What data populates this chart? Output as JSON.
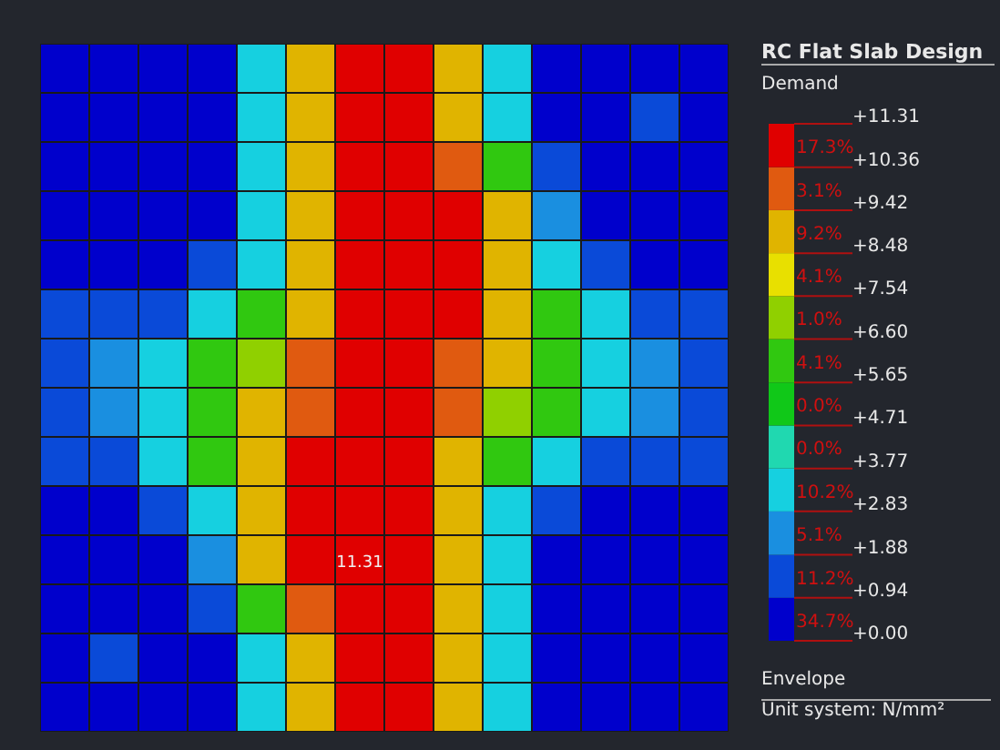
{
  "chart_data": {
    "type": "heatmap",
    "title": "RC Flat Slab Design",
    "clabel": "Demand",
    "categories": [
      null,
      null,
      null,
      null,
      null,
      null,
      null,
      null,
      null,
      null,
      null,
      null,
      null,
      null
    ],
    "y_categories": [
      null,
      null,
      null,
      null,
      null,
      null,
      null,
      null,
      null,
      null,
      null,
      null,
      null,
      null
    ],
    "cells": [
      [
        0.47,
        0.47,
        0.47,
        0.47,
        3.3,
        8.9,
        10.8,
        10.8,
        8.9,
        3.3,
        0.47,
        0.47,
        0.47,
        0.47
      ],
      [
        0.47,
        0.47,
        0.47,
        0.47,
        3.3,
        8.9,
        10.8,
        10.8,
        8.9,
        3.3,
        0.47,
        0.47,
        1.41,
        0.47
      ],
      [
        0.47,
        0.47,
        0.47,
        0.47,
        3.3,
        8.9,
        10.8,
        10.8,
        9.9,
        6.1,
        1.41,
        0.47,
        0.47,
        0.47
      ],
      [
        0.47,
        0.47,
        0.47,
        0.47,
        3.3,
        8.9,
        10.8,
        10.8,
        10.8,
        8.9,
        2.35,
        0.47,
        0.47,
        0.47
      ],
      [
        0.47,
        0.47,
        0.47,
        1.41,
        3.3,
        8.9,
        10.8,
        10.8,
        10.8,
        8.9,
        3.3,
        1.41,
        0.47,
        0.47
      ],
      [
        1.41,
        1.41,
        1.41,
        3.3,
        6.1,
        8.9,
        10.8,
        10.8,
        10.8,
        8.9,
        6.1,
        3.3,
        1.41,
        1.41
      ],
      [
        1.41,
        2.35,
        3.3,
        6.1,
        7.1,
        9.9,
        10.8,
        10.8,
        9.9,
        8.9,
        6.1,
        3.3,
        2.35,
        1.41
      ],
      [
        1.41,
        2.35,
        3.3,
        6.1,
        8.9,
        9.9,
        10.8,
        10.8,
        9.9,
        7.1,
        6.1,
        3.3,
        2.35,
        1.41
      ],
      [
        1.41,
        1.41,
        3.3,
        6.1,
        8.9,
        10.8,
        10.8,
        10.8,
        8.9,
        6.1,
        3.3,
        1.41,
        1.41,
        1.41
      ],
      [
        0.47,
        0.47,
        1.41,
        3.3,
        8.9,
        10.8,
        10.8,
        10.8,
        8.9,
        3.3,
        1.41,
        0.47,
        0.47,
        0.47
      ],
      [
        0.47,
        0.47,
        0.47,
        2.35,
        8.9,
        10.8,
        11.31,
        10.8,
        8.9,
        3.3,
        0.47,
        0.47,
        0.47,
        0.47
      ],
      [
        0.47,
        0.47,
        0.47,
        1.41,
        6.1,
        9.9,
        10.8,
        10.8,
        8.9,
        3.3,
        0.47,
        0.47,
        0.47,
        0.47
      ],
      [
        0.47,
        1.41,
        0.47,
        0.47,
        3.3,
        8.9,
        10.8,
        10.8,
        8.9,
        3.3,
        0.47,
        0.47,
        0.47,
        0.47
      ],
      [
        0.47,
        0.47,
        0.47,
        0.47,
        3.3,
        8.9,
        10.8,
        10.8,
        8.9,
        3.3,
        0.47,
        0.47,
        0.47,
        0.47
      ]
    ],
    "cell_labels": [
      [
        null,
        null,
        null,
        null,
        null,
        null,
        null,
        null,
        null,
        null,
        null,
        null,
        null,
        null
      ],
      [
        null,
        null,
        null,
        null,
        null,
        null,
        null,
        null,
        null,
        null,
        null,
        null,
        null,
        null
      ],
      [
        null,
        null,
        null,
        null,
        null,
        null,
        null,
        null,
        null,
        null,
        null,
        null,
        null,
        null
      ],
      [
        null,
        null,
        null,
        null,
        null,
        null,
        null,
        null,
        null,
        null,
        null,
        null,
        null,
        null
      ],
      [
        null,
        null,
        null,
        null,
        null,
        null,
        null,
        null,
        null,
        null,
        null,
        null,
        null,
        null
      ],
      [
        null,
        null,
        null,
        null,
        null,
        null,
        null,
        null,
        null,
        null,
        null,
        null,
        null,
        null
      ],
      [
        null,
        null,
        null,
        null,
        null,
        null,
        null,
        null,
        null,
        null,
        null,
        null,
        null,
        null
      ],
      [
        null,
        null,
        null,
        null,
        null,
        null,
        null,
        null,
        null,
        null,
        null,
        null,
        null,
        null
      ],
      [
        null,
        null,
        null,
        null,
        null,
        null,
        null,
        null,
        null,
        null,
        null,
        null,
        null,
        null
      ],
      [
        null,
        null,
        null,
        null,
        null,
        null,
        null,
        null,
        null,
        null,
        null,
        null,
        null,
        null
      ],
      [
        null,
        null,
        null,
        null,
        null,
        null,
        "11.31",
        null,
        null,
        null,
        null,
        null,
        null,
        null
      ],
      [
        null,
        null,
        null,
        null,
        null,
        null,
        null,
        null,
        null,
        null,
        null,
        null,
        null,
        null
      ],
      [
        null,
        null,
        null,
        null,
        null,
        null,
        null,
        null,
        null,
        null,
        null,
        null,
        null,
        null
      ],
      [
        null,
        null,
        null,
        null,
        null,
        null,
        null,
        null,
        null,
        null,
        null,
        null,
        null,
        null
      ]
    ],
    "clim": [
      0,
      11.31
    ],
    "cticks": [
      {
        "value": 0,
        "label": "+0.00"
      },
      {
        "value": 0.94,
        "label": "+0.94"
      },
      {
        "value": 1.88,
        "label": "+1.88"
      },
      {
        "value": 2.83,
        "label": "+2.83"
      },
      {
        "value": 3.77,
        "label": "+3.77"
      },
      {
        "value": 4.71,
        "label": "+4.71"
      },
      {
        "value": 5.65,
        "label": "+5.65"
      },
      {
        "value": 6.6,
        "label": "+6.60"
      },
      {
        "value": 7.54,
        "label": "+7.54"
      },
      {
        "value": 8.48,
        "label": "+8.48"
      },
      {
        "value": 9.42,
        "label": "+9.42"
      },
      {
        "value": 10.36,
        "label": "+10.36"
      },
      {
        "value": 11.31,
        "label": "+11.31"
      }
    ],
    "colors": [
      "#0000cc",
      "#0a4ad8",
      "#1a8fe0",
      "#16d0e0",
      "#20d8b0",
      "#10c818",
      "#30c810",
      "#90d000",
      "#e8e000",
      "#e0b400",
      "#e05a10",
      "#e00000"
    ],
    "annotations": [
      "34.7%",
      "11.2%",
      "5.1%",
      "10.2%",
      "0.0%",
      "0.0%",
      "4.1%",
      "1.0%",
      "4.1%",
      "9.2%",
      "3.1%",
      "17.3%",
      "Envelope",
      "Unit system: N/mm²"
    ]
  }
}
